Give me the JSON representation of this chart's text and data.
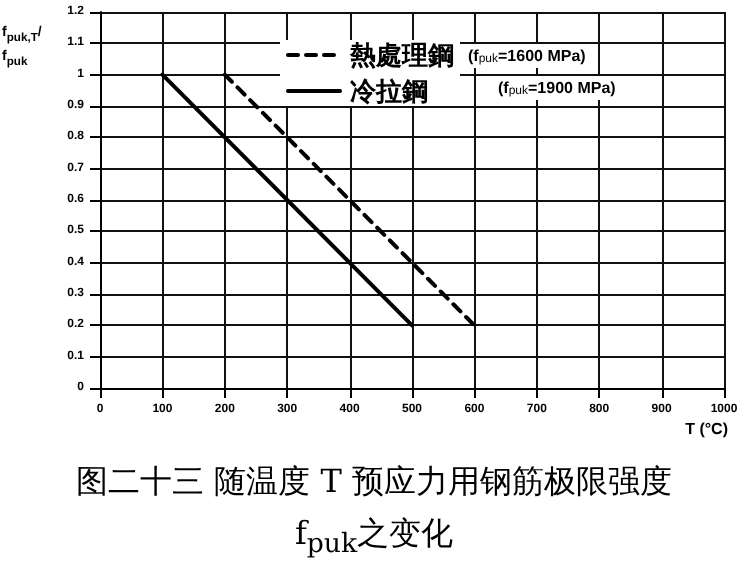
{
  "chart_data": {
    "type": "line",
    "title": "图二十三 随温度 T 预应力用钢筋极限强度 f$_{puk}$之变化",
    "xlabel": "T (°C)",
    "ylabel": "f$_{puk,T}$/f$_{puk}$",
    "series": [
      {
        "name": "熱處理鋼",
        "color": "#000000",
        "line_style": "dashed",
        "x": [
          200,
          600
        ],
        "values": [
          1,
          0.2
        ]
      },
      {
        "name": "冷拉鋼",
        "color": "#000000",
        "line_style": "solid",
        "x": [
          100,
          500
        ],
        "values": [
          1,
          0.2
        ]
      }
    ],
    "annotations": [
      "(f$_{puk}$=1600 MPa)",
      "(f$_{puk}$=1900 MPa)"
    ],
    "xlim": [
      0,
      1000
    ],
    "xticks": [
      0,
      100,
      200,
      300,
      400,
      500,
      600,
      700,
      800,
      900,
      {
        "value": 1000,
        "label": "1000"
      }
    ],
    "ylim": [
      0,
      1.2
    ],
    "yticks": [
      0,
      0.1,
      0.2,
      0.3,
      0.4,
      0.5,
      0.6,
      0.7,
      0.8,
      0.9,
      1,
      1.1,
      1.2
    ],
    "grid": true,
    "legend": "top",
    "marker": "none"
  }
}
